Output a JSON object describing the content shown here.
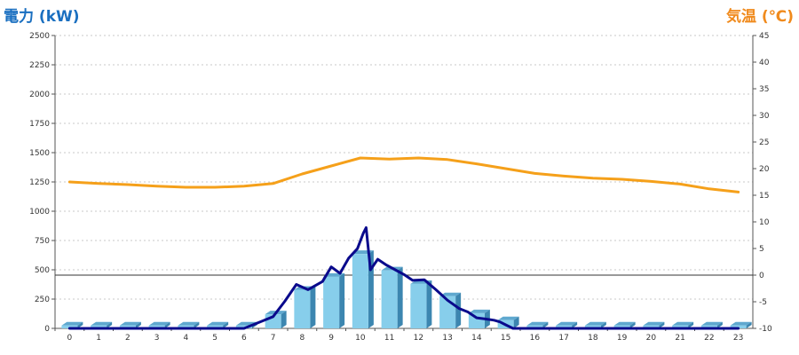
{
  "chart_data": {
    "type": "bar",
    "title": "",
    "ylabel": "電力 (kW)",
    "y2label": "気温 (℃)",
    "xlabel": "",
    "categories": [
      "0",
      "1",
      "2",
      "3",
      "4",
      "5",
      "6",
      "7",
      "8",
      "9",
      "10",
      "11",
      "12",
      "13",
      "14",
      "15",
      "16",
      "17",
      "18",
      "19",
      "20",
      "21",
      "22",
      "23"
    ],
    "ylim": [
      0,
      2500
    ],
    "yticks": [
      0,
      250,
      500,
      750,
      1000,
      1250,
      1500,
      1750,
      2000,
      2250,
      2500
    ],
    "y2lim": [
      -10,
      45
    ],
    "y2ticks": [
      -10,
      -5,
      0,
      5,
      10,
      15,
      20,
      25,
      30,
      35,
      40,
      45
    ],
    "reference_line": {
      "y2": 0
    },
    "grid": true,
    "series": [
      {
        "kind": "bar",
        "axis": "left",
        "color": "#87ceeb",
        "values": [
          25,
          25,
          25,
          25,
          25,
          25,
          25,
          120,
          330,
          440,
          635,
          495,
          380,
          275,
          130,
          70,
          25,
          25,
          25,
          25,
          25,
          25,
          25,
          25
        ]
      },
      {
        "kind": "line",
        "axis": "right",
        "color": "#f5a01a",
        "x": [
          0,
          1,
          2,
          3,
          4,
          5,
          6,
          7,
          8,
          9,
          10,
          11,
          12,
          13,
          14,
          15,
          16,
          17,
          18,
          19,
          20,
          21,
          22,
          23
        ],
        "values": [
          17.5,
          17.2,
          17.0,
          16.7,
          16.5,
          16.5,
          16.7,
          17.2,
          19.0,
          20.5,
          22.0,
          21.8,
          22.0,
          21.7,
          20.9,
          20.0,
          19.1,
          18.6,
          18.2,
          18.0,
          17.6,
          17.1,
          16.2,
          15.6
        ]
      },
      {
        "kind": "line",
        "axis": "left",
        "color": "#0a0a8c",
        "x": [
          0,
          6,
          6.6,
          7,
          7.4,
          7.8,
          8.2,
          8.7,
          9,
          9.3,
          9.6,
          9.9,
          10.1,
          10.2,
          10.35,
          10.6,
          10.9,
          11.2,
          11.5,
          11.8,
          12.2,
          12.6,
          13.0,
          13.4,
          13.7,
          14.0,
          14.3,
          14.6,
          14.8,
          15.0,
          15.25,
          16,
          23
        ],
        "values": [
          0,
          0,
          60,
          100,
          230,
          375,
          330,
          400,
          525,
          470,
          600,
          680,
          810,
          860,
          500,
          590,
          540,
          500,
          460,
          410,
          415,
          330,
          240,
          170,
          140,
          90,
          80,
          70,
          55,
          30,
          0,
          0,
          0
        ]
      }
    ]
  }
}
